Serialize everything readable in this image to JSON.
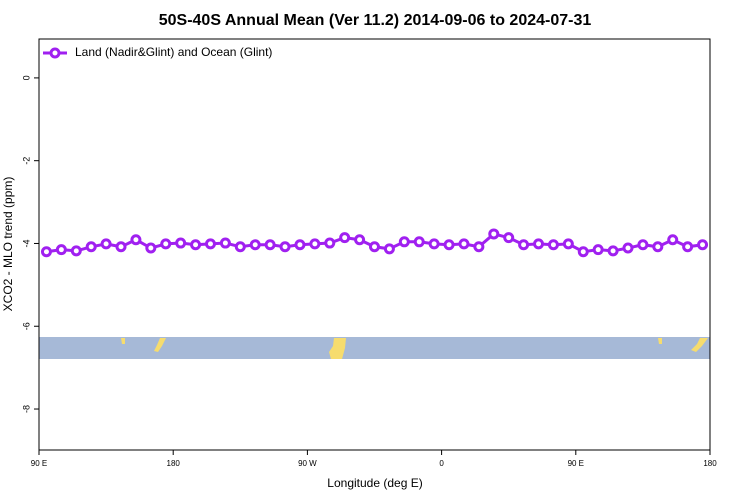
{
  "chart_data": {
    "type": "line",
    "title": "50S-40S Annual Mean (Ver 11.2)   2014-09-06 to 2024-07-31",
    "x_label": "Longitude (deg E)",
    "y_label": "XCO2 - MLO trend (ppm)",
    "x": [
      95,
      105,
      115,
      125,
      135,
      145,
      155,
      165,
      175,
      185,
      195,
      205,
      215,
      225,
      235,
      245,
      255,
      265,
      275,
      285,
      295,
      305,
      315,
      325,
      335,
      345,
      355,
      365,
      375,
      385,
      395,
      405,
      415,
      425,
      435,
      445,
      455,
      465,
      475,
      485,
      495,
      505,
      515,
      525,
      535
    ],
    "series": [
      {
        "name": "Land (Nadir&Glint) and Ocean (Glint)",
        "color": "#a020f0",
        "values": [
          -4.2,
          -4.15,
          -4.18,
          -4.08,
          -4.01,
          -4.08,
          -3.91,
          -4.11,
          -4.01,
          -3.99,
          -4.03,
          -4.01,
          -3.99,
          -4.08,
          -4.03,
          -4.03,
          -4.08,
          -4.03,
          -4.01,
          -3.99,
          -3.86,
          -3.91,
          -4.08,
          -4.13,
          -3.96,
          -3.96,
          -4.01,
          -4.03,
          -4.01,
          -4.08,
          -3.77,
          -3.86,
          -4.03,
          -4.01,
          -4.03,
          -4.01,
          -4.2,
          -4.15,
          -4.18,
          -4.11,
          -4.03,
          -4.08,
          -3.91,
          -4.08,
          -4.03
        ]
      }
    ],
    "xlim": [
      90,
      540
    ],
    "xticks": [
      {
        "value": 90,
        "label": "90 E"
      },
      180,
      {
        "value": 270,
        "label": "90 W"
      },
      {
        "value": 360,
        "label": "0"
      },
      {
        "value": 450,
        "label": "90 E"
      },
      {
        "value": 540,
        "label": "180"
      }
    ],
    "ylim": [
      -8.99,
      0.94
    ],
    "yticks": [
      0,
      -2,
      -4,
      -6,
      -8
    ],
    "legend_position": "top-left"
  }
}
